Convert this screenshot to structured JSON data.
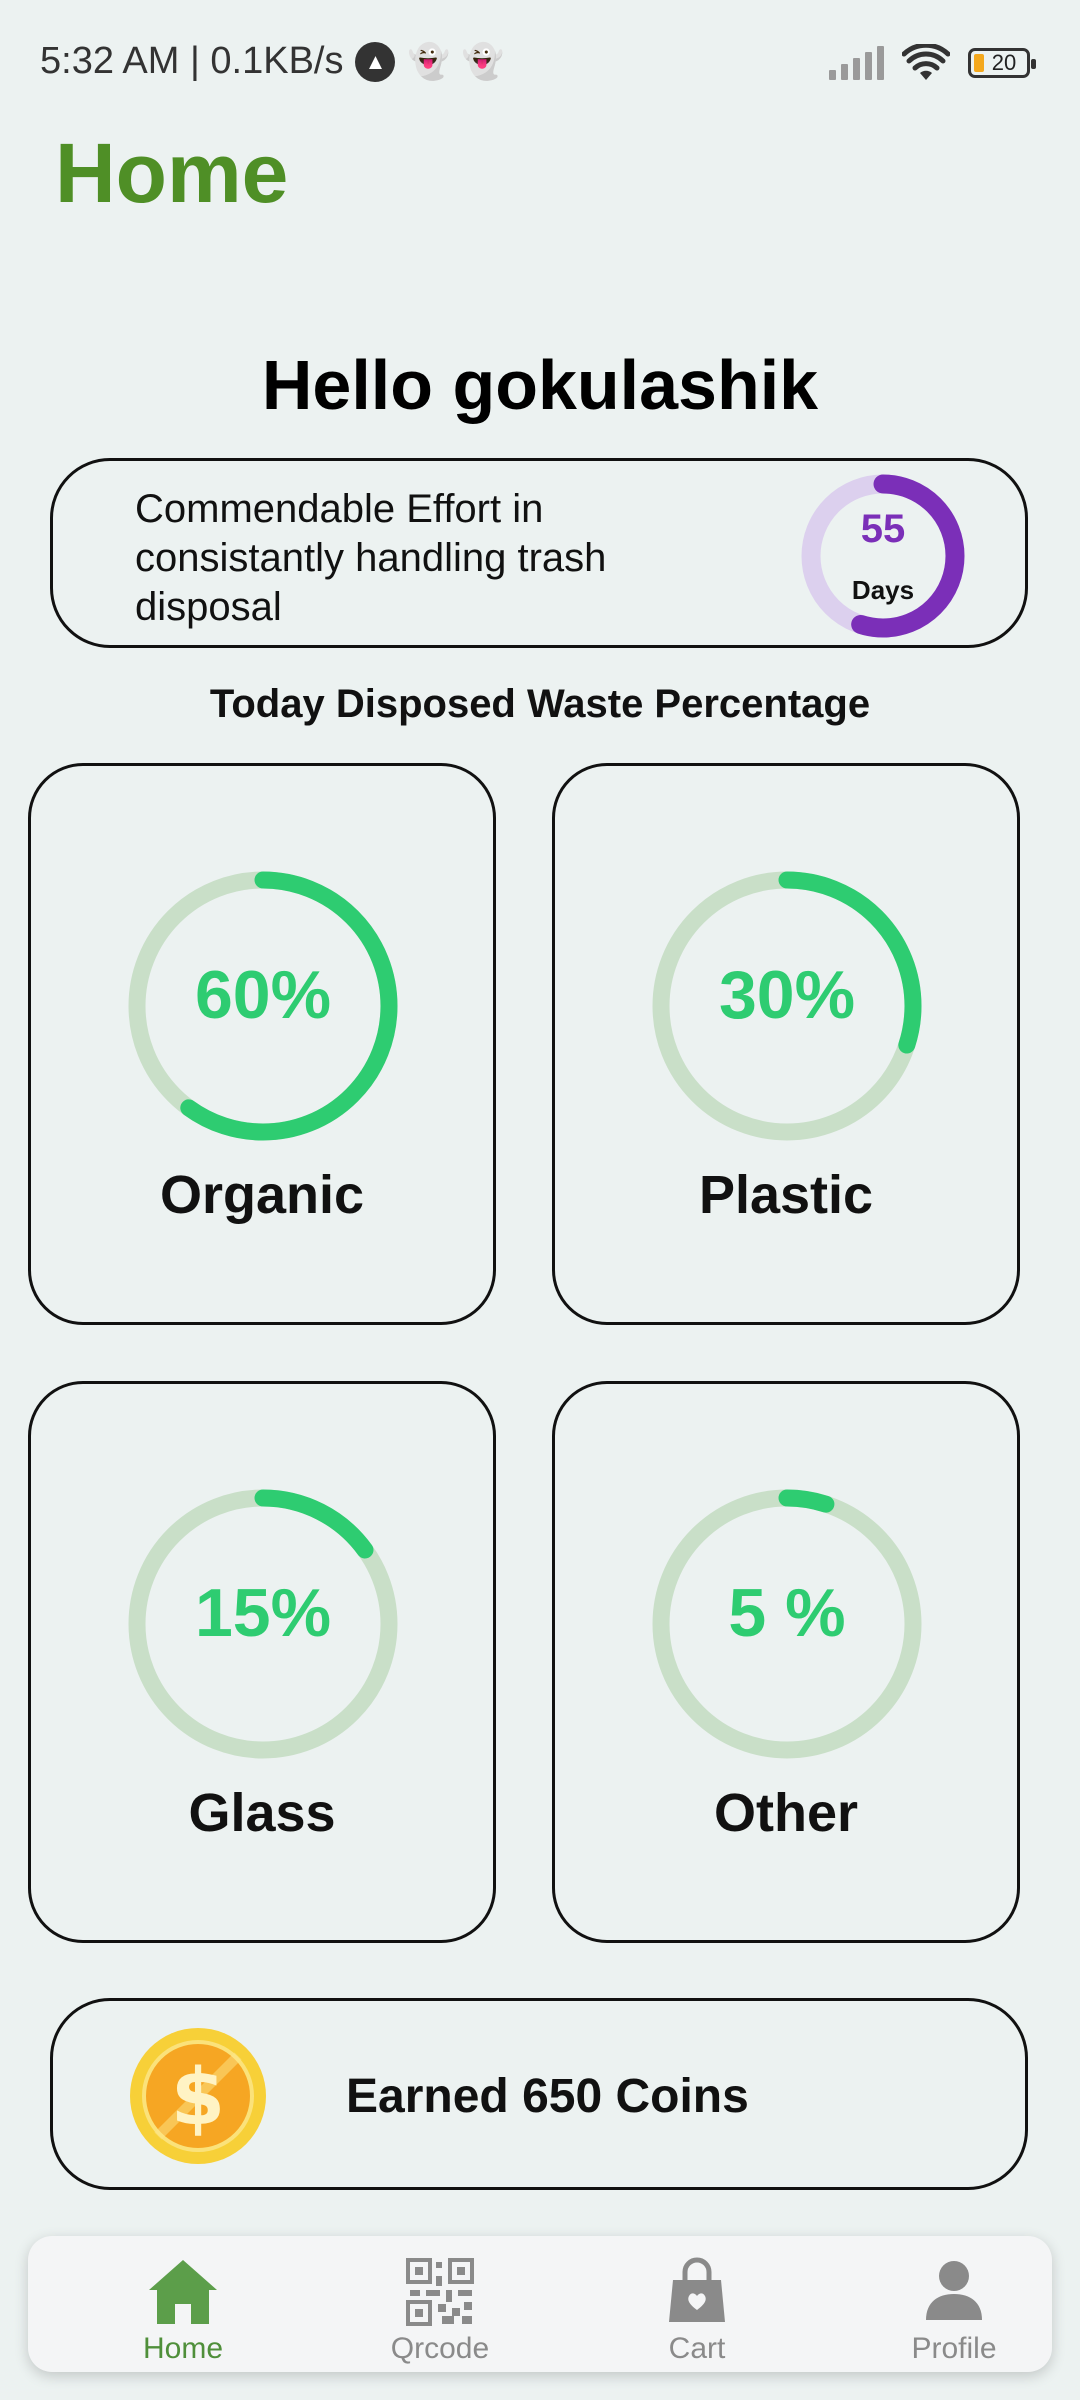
{
  "status_bar": {
    "time_speed": "5:32 AM | 0.1KB/s",
    "battery": "20"
  },
  "page": {
    "title": "Home",
    "greeting": "Hello gokulashik"
  },
  "streak": {
    "message": "Commendable Effort in consistantly handling trash disposal",
    "days_value": "55",
    "days_unit": "Days",
    "progress_fraction": 0.55,
    "color": "#7b2fb8",
    "track_color": "#dcd0ee"
  },
  "waste": {
    "title": "Today Disposed Waste Percentage",
    "ring_color": "#2ecc71",
    "track_color": "#c9dfc8",
    "items": [
      {
        "label": "Organic",
        "percent_text": "60%",
        "fraction": 0.6
      },
      {
        "label": "Plastic",
        "percent_text": "30%",
        "fraction": 0.3
      },
      {
        "label": "Glass",
        "percent_text": "15%",
        "fraction": 0.15
      },
      {
        "label": "Other",
        "percent_text": "5 %",
        "fraction": 0.05
      }
    ]
  },
  "coins": {
    "text": "Earned 650 Coins",
    "icon": "dollar-coin-icon"
  },
  "nav": {
    "items": [
      {
        "label": "Home",
        "icon": "home-icon",
        "active": true
      },
      {
        "label": "Qrcode",
        "icon": "qrcode-icon",
        "active": false
      },
      {
        "label": "Cart",
        "icon": "shopping-bag-icon",
        "active": false
      },
      {
        "label": "Profile",
        "icon": "person-icon",
        "active": false
      }
    ]
  }
}
